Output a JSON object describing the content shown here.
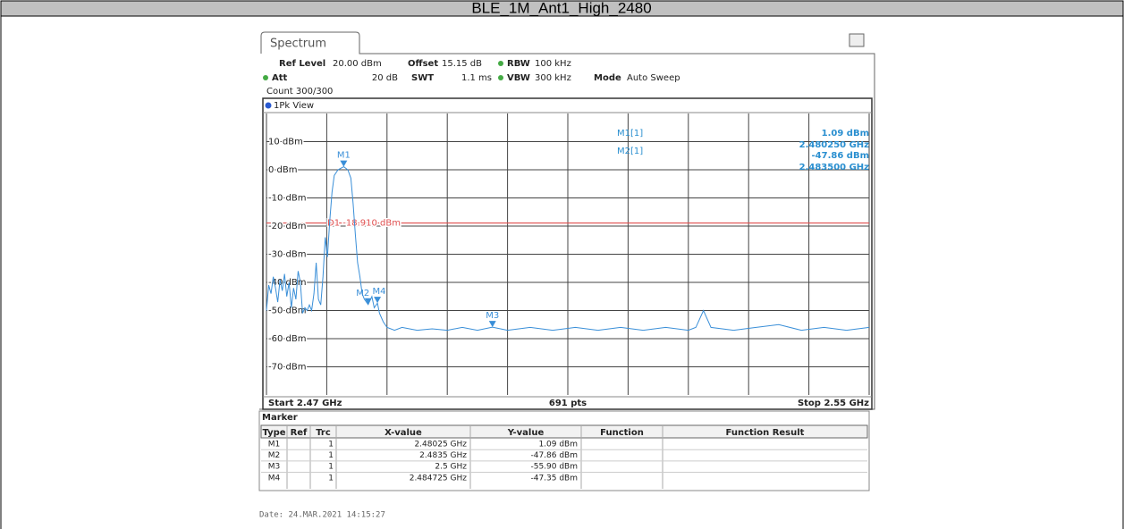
{
  "header": {
    "title": "BLE_1M_Ant1_High_2480"
  },
  "panel": {
    "tab": "Spectrum",
    "settings": [
      "Ref Level",
      "20.00 dBm",
      "Offset",
      "15.15 dB",
      "RBW",
      "100 kHz",
      "Att",
      "20 dB",
      "SWT",
      "1.1 ms",
      "VBW",
      "300 kHz",
      "Mode",
      "Auto Sweep",
      "Count 300/300"
    ],
    "view": "1Pk View",
    "readout": [
      "M1[1]",
      "1.09 dBm",
      "2.480250 GHz",
      "M2[1]",
      "-47.86 dBm",
      "2.483500 GHz"
    ],
    "start": "Start 2.47 GHz",
    "points": "691 pts",
    "stop": "Stop 2.55 GHz"
  },
  "chart_data": {
    "type": "line",
    "xlim": [
      2.47,
      2.55
    ],
    "ylim": [
      -80,
      20
    ],
    "yticks": [
      {
        "value": 10,
        "label": "10 dBm"
      },
      {
        "value": 0,
        "label": "0 dBm"
      },
      {
        "value": -10,
        "label": "-10 dBm"
      },
      {
        "value": -20,
        "label": "-20 dBm"
      },
      {
        "value": -30,
        "label": "-30 dBm"
      },
      {
        "value": -40,
        "label": "-40 dBm"
      },
      {
        "value": -50,
        "label": "-50 dBm"
      },
      {
        "value": -60,
        "label": "-60 dBm"
      },
      {
        "value": -70,
        "label": "-70 dBm"
      }
    ],
    "grid": true,
    "threshold": {
      "label": "D1 -18.910 dBm",
      "value": -18.91,
      "color": "#e05050"
    },
    "x": [
      2.47,
      2.4703,
      2.4706,
      2.4709,
      2.4712,
      2.4715,
      2.4718,
      2.4721,
      2.4724,
      2.4727,
      2.473,
      2.4733,
      2.4736,
      2.4739,
      2.4742,
      2.4745,
      2.4748,
      2.4751,
      2.4754,
      2.4757,
      2.476,
      2.4763,
      2.4766,
      2.4769,
      2.4772,
      2.4775,
      2.4778,
      2.4781,
      2.4784,
      2.4787,
      2.479,
      2.4795,
      2.48025,
      2.4808,
      2.4812,
      2.4815,
      2.4818,
      2.4821,
      2.4824,
      2.4827,
      2.483,
      2.4835,
      2.484,
      2.4843,
      2.484725,
      2.485,
      2.4855,
      2.486,
      2.487,
      2.488,
      2.49,
      2.492,
      2.494,
      2.496,
      2.498,
      2.5,
      2.502,
      2.505,
      2.508,
      2.511,
      2.514,
      2.517,
      2.52,
      2.523,
      2.526,
      2.527,
      2.528,
      2.529,
      2.532,
      2.535,
      2.538,
      2.541,
      2.544,
      2.547,
      2.55
    ],
    "series": [
      {
        "name": "1Pk View",
        "color": "#3a8fd8",
        "values": [
          -50,
          -41,
          -44,
          -38,
          -42,
          -47,
          -39,
          -43,
          -37,
          -45,
          -40,
          -49,
          -42,
          -46,
          -36,
          -40,
          -51,
          -49,
          -50,
          -48,
          -50,
          -44,
          -33,
          -46,
          -48,
          -38,
          -24,
          -31,
          -18,
          -8,
          -2,
          0,
          1.09,
          0,
          -3,
          -12,
          -23,
          -33,
          -38,
          -44,
          -46,
          -47.86,
          -45,
          -49,
          -47.35,
          -51,
          -54,
          -56,
          -57,
          -56,
          -57,
          -56.5,
          -57,
          -56,
          -57,
          -55.9,
          -57,
          -56,
          -57,
          -56,
          -57,
          -56,
          -57,
          -56,
          -57,
          -56,
          -50,
          -56,
          -57,
          -56,
          -55,
          -57,
          -56,
          -57,
          -56
        ]
      }
    ],
    "markers": [
      {
        "name": "M1",
        "x": 2.48025,
        "y": 1.09
      },
      {
        "name": "M2",
        "x": 2.4835,
        "y": -47.86
      },
      {
        "name": "M3",
        "x": 2.5,
        "y": -55.9
      },
      {
        "name": "M4",
        "x": 2.484725,
        "y": -47.35
      }
    ]
  },
  "marker_table": {
    "title": "Marker",
    "columns": [
      "Type",
      "Ref",
      "Trc",
      "X-value",
      "Y-value",
      "Function",
      "Function Result"
    ],
    "rows": [
      [
        "M1",
        "1",
        "2.48025 GHz",
        "1.09 dBm"
      ],
      [
        "M2",
        "1",
        "2.4835 GHz",
        "-47.86 dBm"
      ],
      [
        "M3",
        "1",
        "2.5 GHz",
        "-55.90 dBm"
      ],
      [
        "M4",
        "1",
        "2.484725 GHz",
        "-47.35 dBm"
      ]
    ]
  },
  "footer": {
    "date": "Date: 24.MAR.2021  14:15:27"
  }
}
